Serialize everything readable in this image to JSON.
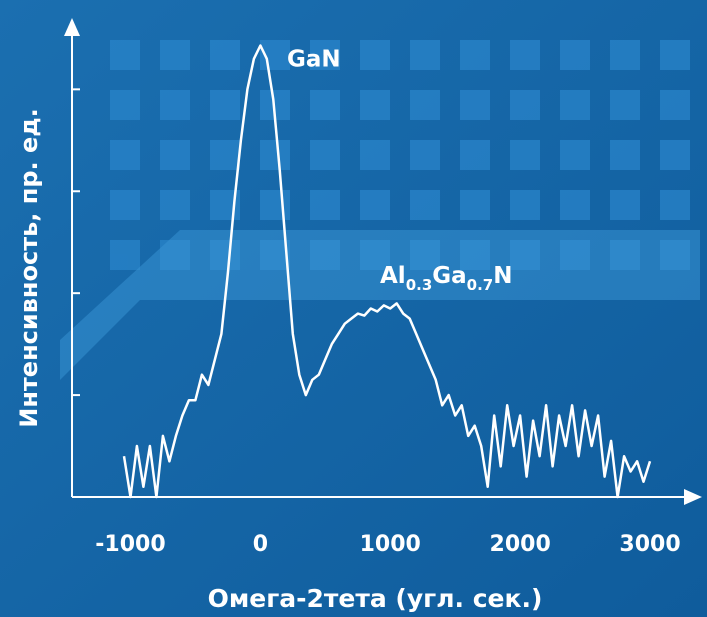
{
  "chart_data": {
    "type": "line",
    "xlabel": "Омега-2тета (угл. сек.)",
    "ylabel": "Интенсивность, пр. ед.",
    "annotations": [
      "GaN",
      [
        "Al",
        "0.3",
        "Ga",
        "0.7",
        "N"
      ]
    ],
    "xlim": [
      -1450,
      3400
    ],
    "xticks": [
      -1000,
      0,
      1000,
      2000,
      3000
    ],
    "ylim": [
      0,
      4.7
    ],
    "yticks": [
      1,
      2,
      3,
      4
    ],
    "grid": false,
    "series": [
      {
        "color": "#ffffff",
        "x": [
          -1050,
          -1000,
          -950,
          -900,
          -850,
          -800,
          -750,
          -700,
          -650,
          -600,
          -550,
          -500,
          -450,
          -400,
          -350,
          -300,
          -250,
          -200,
          -150,
          -100,
          -50,
          0,
          50,
          100,
          150,
          200,
          250,
          300,
          350,
          400,
          450,
          500,
          550,
          600,
          650,
          700,
          750,
          800,
          850,
          900,
          950,
          1000,
          1050,
          1100,
          1150,
          1200,
          1250,
          1300,
          1350,
          1400,
          1450,
          1500,
          1550,
          1600,
          1650,
          1700,
          1750,
          1800,
          1850,
          1900,
          1950,
          2000,
          2050,
          2100,
          2150,
          2200,
          2250,
          2300,
          2350,
          2400,
          2450,
          2500,
          2550,
          2600,
          2650,
          2700,
          2750,
          2800,
          2850,
          2900,
          2950,
          3000
        ],
        "values": [
          0.4,
          0.0,
          0.5,
          0.1,
          0.5,
          0.0,
          0.6,
          0.35,
          0.6,
          0.8,
          0.95,
          0.95,
          1.2,
          1.1,
          1.35,
          1.6,
          2.2,
          2.9,
          3.5,
          4.0,
          4.3,
          4.43,
          4.3,
          3.9,
          3.2,
          2.4,
          1.6,
          1.2,
          1.0,
          1.15,
          1.2,
          1.35,
          1.5,
          1.6,
          1.7,
          1.75,
          1.8,
          1.78,
          1.85,
          1.82,
          1.88,
          1.85,
          1.9,
          1.8,
          1.75,
          1.6,
          1.45,
          1.3,
          1.15,
          0.9,
          1.0,
          0.8,
          0.9,
          0.6,
          0.7,
          0.5,
          0.1,
          0.8,
          0.3,
          0.9,
          0.5,
          0.8,
          0.2,
          0.75,
          0.4,
          0.9,
          0.3,
          0.8,
          0.5,
          0.9,
          0.4,
          0.85,
          0.5,
          0.8,
          0.2,
          0.55,
          0.0,
          0.4,
          0.25,
          0.35,
          0.15,
          0.35
        ]
      }
    ]
  }
}
